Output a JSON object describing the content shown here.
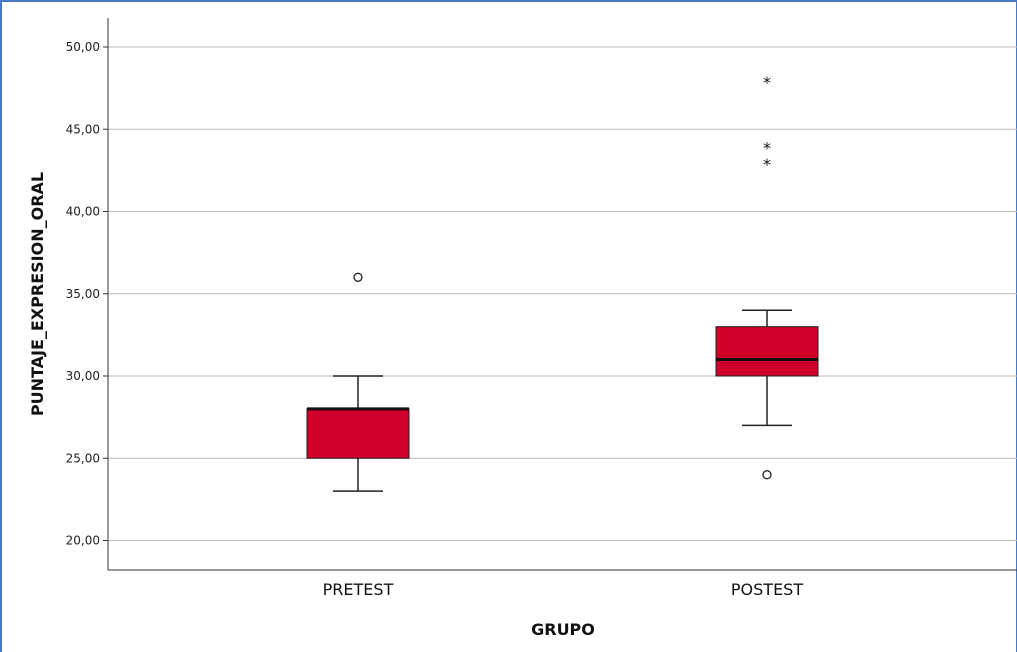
{
  "chart_data": {
    "type": "box",
    "xlabel": "GRUPO",
    "ylabel": "PUNTAJE_EXPRESION_ORAL",
    "ylim": [
      18.3,
      50.8
    ],
    "yticks": [
      20,
      25,
      30,
      35,
      40,
      45,
      50
    ],
    "ytick_labels": [
      "20,00",
      "25,00",
      "30,00",
      "35,00",
      "40,00",
      "45,00",
      "50,00"
    ],
    "grid": true,
    "box_color": "#d0002a",
    "categories": [
      "PRETEST",
      "POSTEST"
    ],
    "boxes": [
      {
        "category": "PRETEST",
        "whisker_low": 23,
        "q1": 25,
        "median": 28,
        "q3": 28,
        "whisker_high": 30,
        "outliers": [
          36
        ],
        "extremes": []
      },
      {
        "category": "POSTEST",
        "whisker_low": 27,
        "q1": 30,
        "median": 31,
        "q3": 33,
        "whisker_high": 34,
        "outliers": [
          24
        ],
        "extremes": [
          43,
          44,
          48
        ]
      }
    ]
  }
}
